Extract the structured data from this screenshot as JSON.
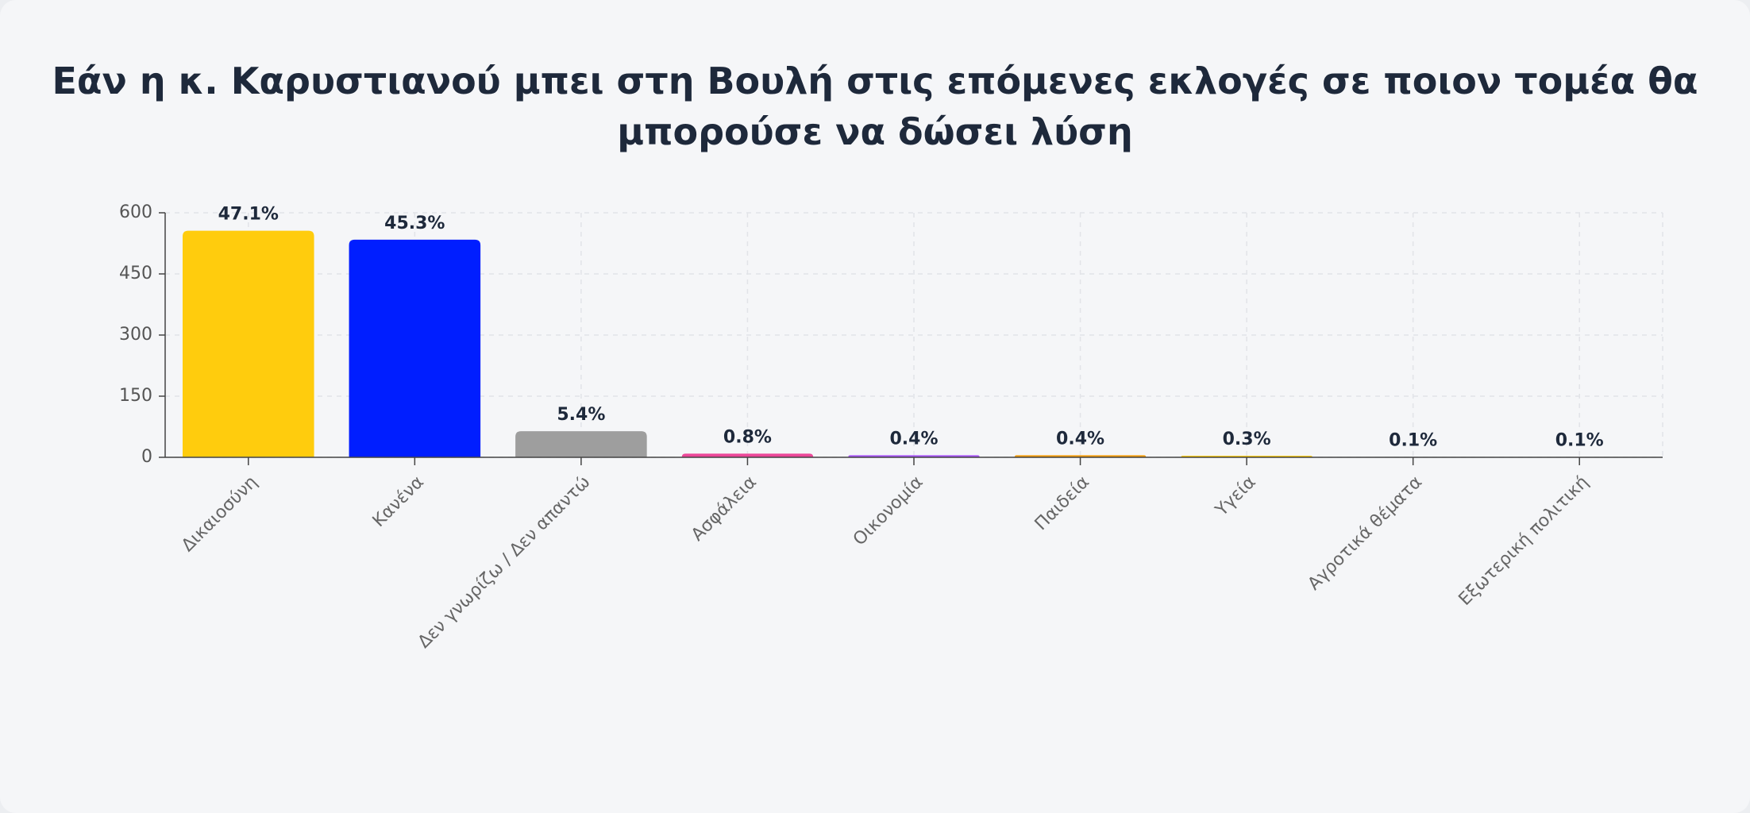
{
  "chart_data": {
    "type": "bar",
    "title": "Εάν η κ. Καρυστιανού μπει στη Βουλή στις επόμενες εκλογές σε ποιον τομέα θα μπορούσε να δώσει λύση",
    "categories": [
      "Δικαιοσύνη",
      "Κανένα",
      "Δεν γνωρίζω / Δεν απαντώ",
      "Ασφάλεια",
      "Οικονομία",
      "Παιδεία",
      "Υγεία",
      "Αγροτικά θέματα",
      "Εξωτερική πολιτική"
    ],
    "values": [
      556,
      534,
      64,
      9,
      5,
      5,
      4,
      1,
      1
    ],
    "value_labels": [
      "47.1%",
      "45.3%",
      "5.4%",
      "0.8%",
      "0.4%",
      "0.4%",
      "0.3%",
      "0.1%",
      "0.1%"
    ],
    "colors": [
      "#ffcc0d",
      "#001eff",
      "#9e9e9e",
      "#ec4899",
      "#a855f7",
      "#f59e0b",
      "#facc15",
      "#1e3a8a",
      "#334155"
    ],
    "ylim": [
      0,
      600
    ],
    "yticks": [
      0,
      150,
      300,
      450,
      600
    ],
    "grid": true
  }
}
